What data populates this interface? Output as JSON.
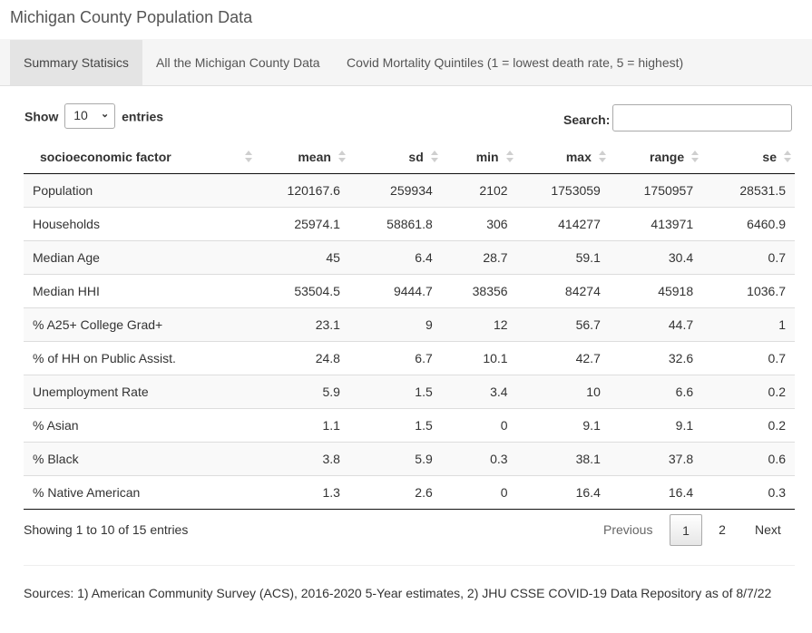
{
  "app": {
    "title": "Michigan County Population Data"
  },
  "tabs": [
    {
      "label": "Summary Statisics",
      "active": true
    },
    {
      "label": "All the Michigan County Data",
      "active": false
    },
    {
      "label": "Covid Mortality Quintiles (1 = lowest death rate, 5 = highest)",
      "active": false
    }
  ],
  "controls": {
    "show_label": "Show",
    "entries_label": "entries",
    "length_value": "10",
    "search_label": "Search:",
    "search_value": ""
  },
  "table": {
    "columns": [
      "socioeconomic factor",
      "mean",
      "sd",
      "min",
      "max",
      "range",
      "se"
    ],
    "rows": [
      [
        "Population",
        "120167.6",
        "259934",
        "2102",
        "1753059",
        "1750957",
        "28531.5"
      ],
      [
        "Households",
        "25974.1",
        "58861.8",
        "306",
        "414277",
        "413971",
        "6460.9"
      ],
      [
        "Median Age",
        "45",
        "6.4",
        "28.7",
        "59.1",
        "30.4",
        "0.7"
      ],
      [
        "Median HHI",
        "53504.5",
        "9444.7",
        "38356",
        "84274",
        "45918",
        "1036.7"
      ],
      [
        "% A25+ College Grad+",
        "23.1",
        "9",
        "12",
        "56.7",
        "44.7",
        "1"
      ],
      [
        "% of HH on Public Assist.",
        "24.8",
        "6.7",
        "10.1",
        "42.7",
        "32.6",
        "0.7"
      ],
      [
        "Unemployment Rate",
        "5.9",
        "1.5",
        "3.4",
        "10",
        "6.6",
        "0.2"
      ],
      [
        "% Asian",
        "1.1",
        "1.5",
        "0",
        "9.1",
        "9.1",
        "0.2"
      ],
      [
        "% Black",
        "3.8",
        "5.9",
        "0.3",
        "38.1",
        "37.8",
        "0.6"
      ],
      [
        "% Native American",
        "1.3",
        "2.6",
        "0",
        "16.4",
        "16.4",
        "0.3"
      ]
    ]
  },
  "footer": {
    "info": "Showing 1 to 10 of 15 entries",
    "previous": "Previous",
    "page1": "1",
    "page2": "2",
    "next": "Next"
  },
  "sources": "Sources: 1) American Community Survey (ACS), 2016-2020 5-Year estimates, 2) JHU CSSE COVID-19 Data Repository as of 8/7/22"
}
